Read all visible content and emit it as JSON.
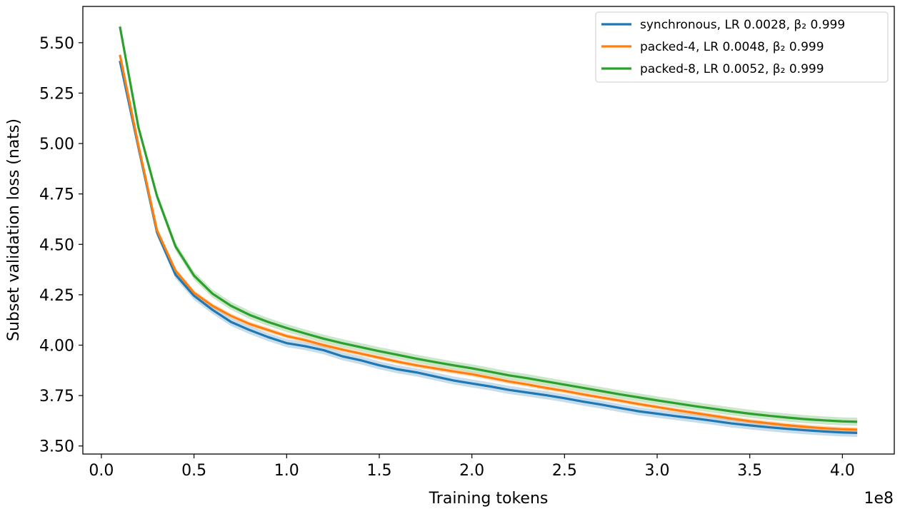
{
  "chart_data": {
    "type": "line",
    "title": "",
    "xlabel": "Training tokens",
    "ylabel": "Subset validation loss (nats)",
    "x_offset_label": "1e8",
    "xlim": [
      -0.1,
      4.28
    ],
    "ylim": [
      3.46,
      5.68
    ],
    "x_ticks": [
      0.0,
      0.5,
      1.0,
      1.5,
      2.0,
      2.5,
      3.0,
      3.5,
      4.0
    ],
    "x_tick_labels": [
      "0.0",
      "0.5",
      "1.0",
      "1.5",
      "2.0",
      "2.5",
      "3.0",
      "3.5",
      "4.0"
    ],
    "y_ticks": [
      3.5,
      3.75,
      4.0,
      4.25,
      4.5,
      4.75,
      5.0,
      5.25,
      5.5
    ],
    "y_tick_labels": [
      "3.50",
      "3.75",
      "4.00",
      "4.25",
      "4.50",
      "4.75",
      "5.00",
      "5.25",
      "5.50"
    ],
    "grid": false,
    "legend_position": "top-right",
    "x": [
      0.1,
      0.2,
      0.3,
      0.4,
      0.5,
      0.6,
      0.7,
      0.8,
      0.9,
      1.0,
      1.1,
      1.2,
      1.3,
      1.4,
      1.5,
      1.6,
      1.7,
      1.8,
      1.9,
      2.0,
      2.1,
      2.2,
      2.3,
      2.4,
      2.5,
      2.6,
      2.7,
      2.8,
      2.9,
      3.0,
      3.1,
      3.2,
      3.3,
      3.4,
      3.5,
      3.6,
      3.7,
      3.8,
      3.9,
      4.0,
      4.08
    ],
    "series": [
      {
        "name": "synchronous, LR 0.0028, β₂ 0.999",
        "color": "#1f77b4",
        "band": 0.02,
        "values": [
          5.41,
          4.98,
          4.56,
          4.35,
          4.245,
          4.175,
          4.115,
          4.075,
          4.04,
          4.01,
          3.995,
          3.975,
          3.945,
          3.925,
          3.9,
          3.88,
          3.865,
          3.845,
          3.825,
          3.81,
          3.795,
          3.778,
          3.765,
          3.752,
          3.737,
          3.72,
          3.705,
          3.688,
          3.672,
          3.66,
          3.648,
          3.637,
          3.625,
          3.612,
          3.602,
          3.593,
          3.585,
          3.578,
          3.572,
          3.567,
          3.565
        ]
      },
      {
        "name": "packed-4, LR 0.0048, β₂ 0.999",
        "color": "#ff7f0e",
        "band": 0.012,
        "values": [
          5.44,
          4.99,
          4.57,
          4.37,
          4.26,
          4.195,
          4.145,
          4.105,
          4.075,
          4.045,
          4.025,
          4.0,
          3.978,
          3.958,
          3.938,
          3.918,
          3.9,
          3.885,
          3.87,
          3.856,
          3.838,
          3.82,
          3.805,
          3.788,
          3.773,
          3.756,
          3.74,
          3.725,
          3.708,
          3.693,
          3.678,
          3.664,
          3.65,
          3.636,
          3.623,
          3.613,
          3.603,
          3.595,
          3.588,
          3.583,
          3.581
        ]
      },
      {
        "name": "packed-8, LR 0.0052, β₂ 0.999",
        "color": "#2ca02c",
        "band": 0.02,
        "values": [
          5.58,
          5.08,
          4.74,
          4.49,
          4.345,
          4.255,
          4.195,
          4.15,
          4.115,
          4.085,
          4.058,
          4.032,
          4.01,
          3.99,
          3.97,
          3.952,
          3.933,
          3.916,
          3.9,
          3.885,
          3.868,
          3.85,
          3.836,
          3.82,
          3.804,
          3.788,
          3.772,
          3.756,
          3.741,
          3.726,
          3.712,
          3.698,
          3.685,
          3.672,
          3.66,
          3.65,
          3.641,
          3.633,
          3.627,
          3.622,
          3.62
        ]
      }
    ]
  }
}
